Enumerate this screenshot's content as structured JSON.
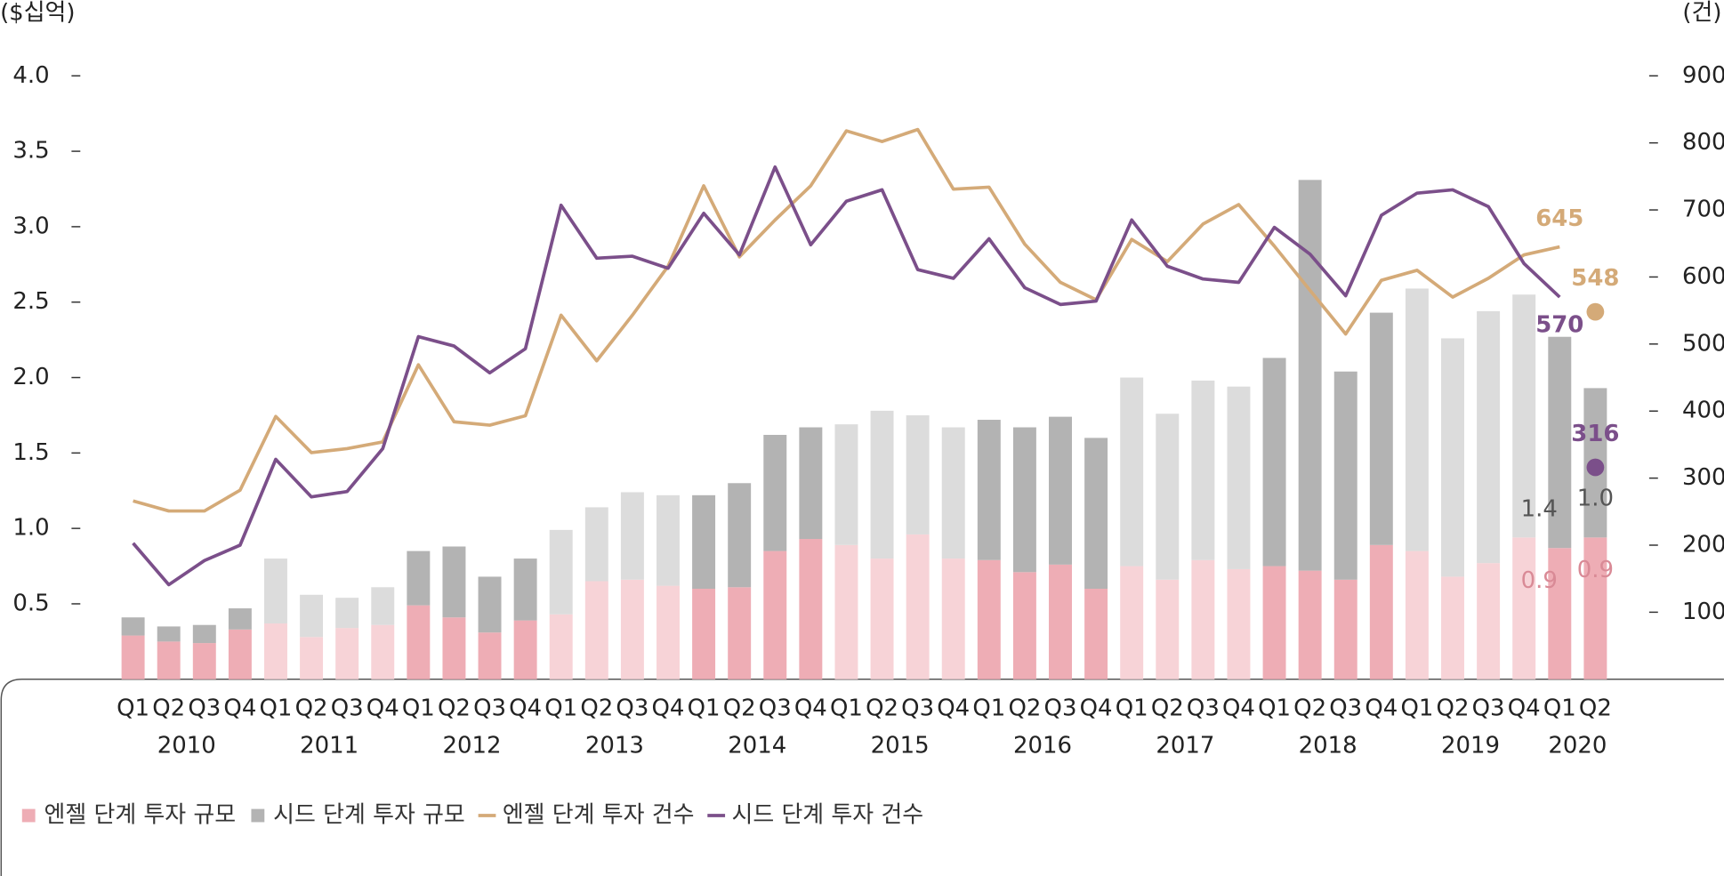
{
  "chart_data": {
    "type": "combo",
    "y_unit": "($십억)",
    "y2_unit": "(건)",
    "categories": [
      "Q1",
      "Q2",
      "Q3",
      "Q4",
      "Q1",
      "Q2",
      "Q3",
      "Q4",
      "Q1",
      "Q2",
      "Q3",
      "Q4",
      "Q1",
      "Q2",
      "Q3",
      "Q4",
      "Q1",
      "Q2",
      "Q3",
      "Q4",
      "Q1",
      "Q2",
      "Q3",
      "Q4",
      "Q1",
      "Q2",
      "Q3",
      "Q4",
      "Q1",
      "Q2",
      "Q3",
      "Q4",
      "Q1",
      "Q2",
      "Q3",
      "Q4",
      "Q1",
      "Q2",
      "Q3",
      "Q4",
      "Q1",
      "Q2"
    ],
    "year_groups": [
      {
        "label": "2010",
        "count": 4
      },
      {
        "label": "2011",
        "count": 4
      },
      {
        "label": "2012",
        "count": 4
      },
      {
        "label": "2013",
        "count": 4
      },
      {
        "label": "2014",
        "count": 4
      },
      {
        "label": "2015",
        "count": 4
      },
      {
        "label": "2016",
        "count": 4
      },
      {
        "label": "2017",
        "count": 4
      },
      {
        "label": "2018",
        "count": 4
      },
      {
        "label": "2019",
        "count": 4
      },
      {
        "label": "2020",
        "count": 2
      }
    ],
    "ylim": [
      0,
      4
    ],
    "yticks": [
      0.5,
      {
        "value": 1,
        "label": "1.0"
      },
      1.5,
      {
        "value": 2,
        "label": "2.0"
      },
      2.5,
      {
        "value": 3,
        "label": "3.0"
      },
      3.5,
      {
        "value": 4,
        "label": "4.0"
      }
    ],
    "y2lim": [
      0,
      900
    ],
    "y2ticks": [
      100,
      200,
      300,
      400,
      500,
      600,
      700,
      800,
      900
    ],
    "legend": "bottom-left",
    "series": [
      {
        "name": "엔젤 단계 투자 규모",
        "kind": "bar",
        "colors": [
          "#eeadb5",
          "#f7d3d7"
        ],
        "label_color": "#d98a96",
        "values": [
          0.29,
          0.25,
          0.24,
          0.33,
          0.37,
          0.28,
          0.34,
          0.36,
          0.49,
          0.41,
          0.31,
          0.39,
          0.43,
          0.65,
          0.66,
          0.62,
          0.6,
          0.61,
          0.85,
          0.93,
          0.89,
          0.8,
          0.96,
          0.8,
          0.79,
          0.71,
          0.76,
          0.6,
          0.75,
          0.66,
          0.79,
          0.73,
          0.75,
          0.72,
          0.66,
          0.89,
          0.85,
          0.68,
          0.77,
          0.94,
          0.87,
          0.94
        ],
        "value_labels": [
          null,
          null,
          null,
          null,
          null,
          null,
          null,
          null,
          null,
          null,
          null,
          null,
          null,
          null,
          null,
          null,
          null,
          null,
          null,
          null,
          null,
          null,
          null,
          null,
          null,
          null,
          null,
          null,
          null,
          null,
          null,
          null,
          null,
          null,
          null,
          null,
          null,
          null,
          null,
          null,
          "0.9",
          "0.9"
        ]
      },
      {
        "name": "시드 단계 투자 규모",
        "kind": "bar",
        "colors": [
          "#b3b3b3",
          "#dcdcdc"
        ],
        "label_color": "#555555",
        "values": [
          0.12,
          0.1,
          0.12,
          0.14,
          0.43,
          0.28,
          0.2,
          0.25,
          0.36,
          0.47,
          0.37,
          0.41,
          0.56,
          0.49,
          0.58,
          0.6,
          0.62,
          0.69,
          0.77,
          0.74,
          0.8,
          0.98,
          0.79,
          0.87,
          0.93,
          0.96,
          0.98,
          1.0,
          1.25,
          1.1,
          1.19,
          1.21,
          1.38,
          2.59,
          1.38,
          1.54,
          1.74,
          1.58,
          1.67,
          1.61,
          1.4,
          0.99
        ],
        "value_labels": [
          null,
          null,
          null,
          null,
          null,
          null,
          null,
          null,
          null,
          null,
          null,
          null,
          null,
          null,
          null,
          null,
          null,
          null,
          null,
          null,
          null,
          null,
          null,
          null,
          null,
          null,
          null,
          null,
          null,
          null,
          null,
          null,
          null,
          null,
          null,
          null,
          null,
          null,
          null,
          null,
          "1.4",
          "1.0"
        ]
      },
      {
        "name": "엔젤 단계 투자 건수",
        "kind": "line",
        "axis": "y2",
        "color": "#d4aa78",
        "label_side": "above",
        "values": [
          266,
          251,
          251,
          282,
          392,
          338,
          344,
          354,
          469,
          384,
          379,
          393,
          543,
          475,
          543,
          616,
          736,
          630,
          685,
          736,
          818,
          802,
          820,
          731,
          734,
          649,
          592,
          566,
          656,
          623,
          679,
          708,
          646,
          580,
          515,
          595,
          610,
          570,
          598,
          633,
          645,
          null
        ],
        "latest_value": 548
      },
      {
        "name": "시드 단계 투자 건수",
        "kind": "line",
        "axis": "y2",
        "color": "#7b4f8a",
        "label_side": "below",
        "values": [
          203,
          141,
          177,
          200,
          328,
          272,
          280,
          344,
          511,
          497,
          457,
          493,
          707,
          628,
          631,
          613,
          695,
          633,
          764,
          648,
          713,
          730,
          611,
          598,
          657,
          584,
          559,
          564,
          685,
          616,
          597,
          592,
          674,
          634,
          572,
          692,
          725,
          730,
          705,
          620,
          570,
          null
        ],
        "latest_value": 316
      }
    ]
  }
}
